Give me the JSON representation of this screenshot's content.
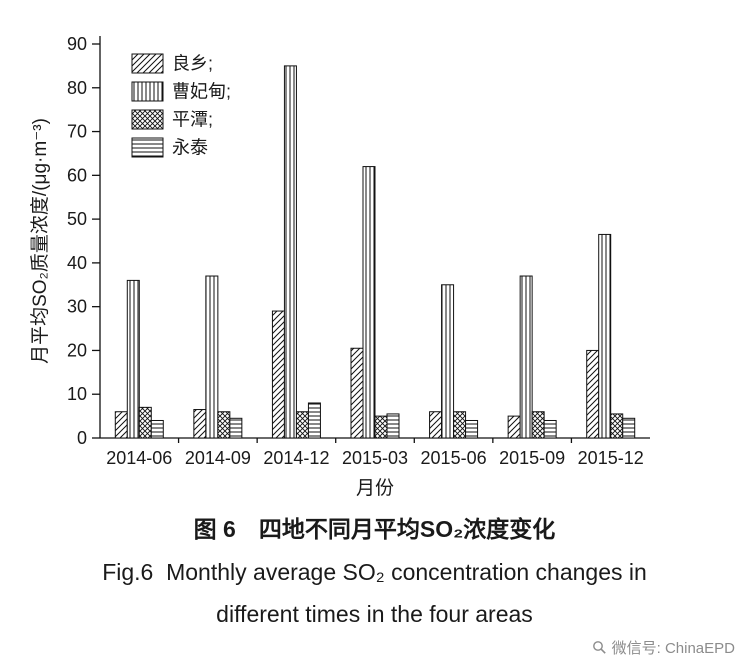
{
  "chart_data": {
    "type": "bar",
    "title": "",
    "xlabel": "月份",
    "ylabel": "月平均SO₂质量浓度/(μg·m⁻³)",
    "ylim": [
      0,
      90
    ],
    "yticks": [
      0,
      10,
      20,
      30,
      40,
      50,
      60,
      70,
      80,
      90
    ],
    "grid": false,
    "legend_position": "top-left",
    "legend_labels": [
      "良乡;",
      "曹妃甸;",
      "平潭;",
      "永泰"
    ],
    "categories": [
      "2014-06",
      "2014-09",
      "2014-12",
      "2015-03",
      "2015-06",
      "2015-09",
      "2015-12"
    ],
    "series": [
      {
        "name": "良乡",
        "pattern": "diagonal",
        "values": [
          6,
          6.5,
          29,
          20.5,
          6,
          5,
          20
        ]
      },
      {
        "name": "曹妃甸",
        "pattern": "vertical",
        "values": [
          36,
          37,
          85,
          62,
          35,
          37,
          46.5
        ]
      },
      {
        "name": "平潭",
        "pattern": "crosshatch",
        "values": [
          7,
          6,
          6,
          5,
          6,
          6,
          5.5
        ]
      },
      {
        "name": "永泰",
        "pattern": "horizontal",
        "values": [
          4,
          4.5,
          8,
          5.5,
          4,
          4,
          4.5
        ]
      }
    ]
  },
  "caption": {
    "zh": "图 6　四地不同月平均SO₂浓度变化",
    "en_line1": "Fig.6  Monthly average SO₂ concentration changes in",
    "en_line2": "different times in the four areas"
  },
  "watermark": {
    "label": "微信号: ChinaEPD"
  },
  "colors": {
    "axis": "#111111",
    "text": "#1a1a1a",
    "watermark": "#8c8c8c",
    "background": "#ffffff"
  }
}
